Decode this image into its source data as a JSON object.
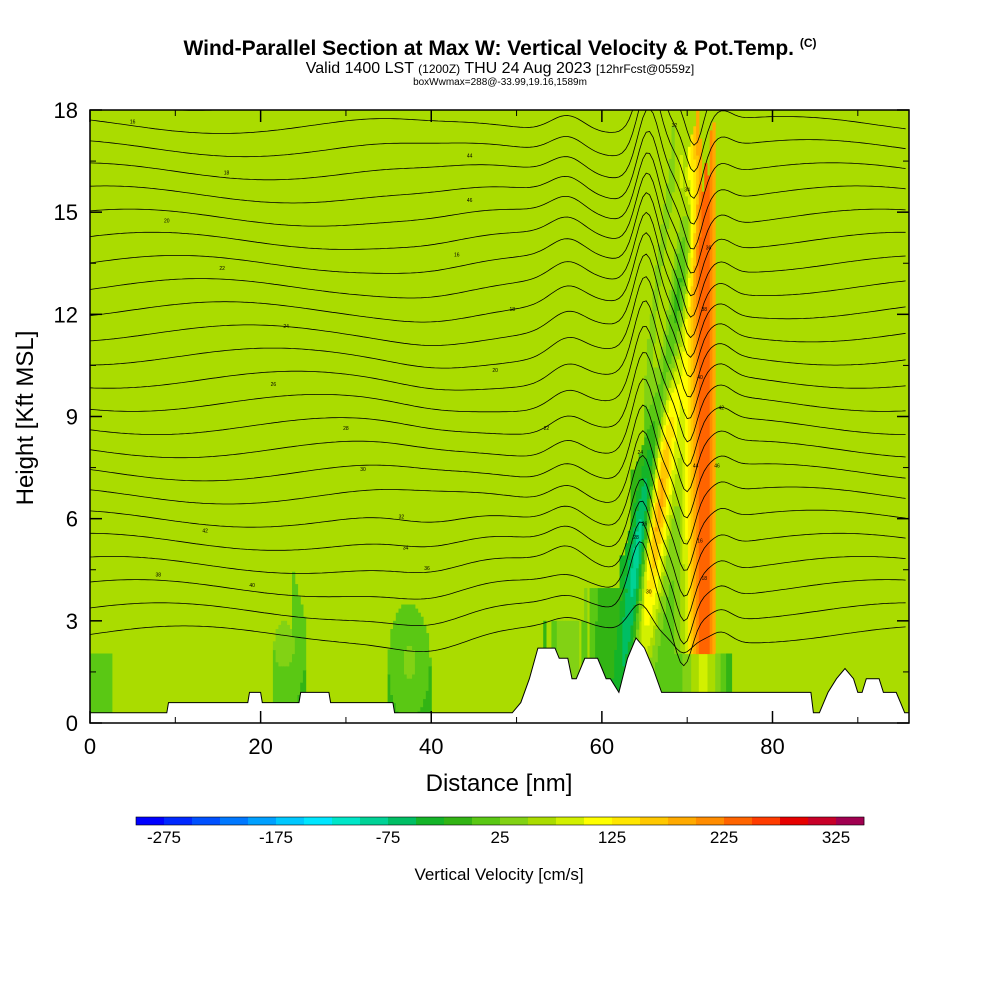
{
  "header": {
    "title_main": "Wind-Parallel Section at Max W: Vertical Velocity & Pot.Temp.",
    "title_mark": "(C)",
    "valid_prefix": "Valid 1400 LST",
    "valid_utc": "(1200Z)",
    "valid_date": "THU 24 Aug 2023",
    "forecast": "[12hrFcst@0559z]",
    "box_info": "boxWwmax=288@-33.99,19.16,1589m"
  },
  "chart_data": {
    "type": "heatmap",
    "xlabel": "Distance [nm]",
    "ylabel": "Height [Kft MSL]",
    "xlim": [
      0,
      96
    ],
    "ylim": [
      0,
      18
    ],
    "x_ticks": [
      0,
      20,
      40,
      60,
      80
    ],
    "y_ticks": [
      0,
      3,
      6,
      9,
      12,
      15,
      18
    ],
    "colorbar": {
      "title": "Vertical Velocity [cm/s]",
      "min": -300,
      "max": 350,
      "step": 25,
      "tick_values": [
        -275,
        -175,
        -75,
        25,
        125,
        225,
        325
      ],
      "tick_labels": [
        "-275",
        "-175",
        "-75",
        "25",
        "125",
        "225",
        "325"
      ],
      "colors": [
        "#0000ff",
        "#0028ff",
        "#0050ff",
        "#0078ff",
        "#00a0ff",
        "#00c8ff",
        "#00e6ff",
        "#00e6c8",
        "#00d296",
        "#00be64",
        "#14b428",
        "#32b414",
        "#5ac814",
        "#82d214",
        "#aadc00",
        "#d2f000",
        "#ffff00",
        "#ffe600",
        "#ffc800",
        "#ffaa00",
        "#ff8c00",
        "#ff6400",
        "#ff3c00",
        "#e60000",
        "#c80028",
        "#a00050"
      ]
    },
    "terrain_kft": [
      [
        0,
        0.3
      ],
      [
        9,
        0.3
      ],
      [
        9.2,
        0.6
      ],
      [
        18.5,
        0.6
      ],
      [
        18.7,
        0.9
      ],
      [
        20,
        0.9
      ],
      [
        20.2,
        0.6
      ],
      [
        24.5,
        0.6
      ],
      [
        24.7,
        0.9
      ],
      [
        28,
        0.9
      ],
      [
        28.2,
        0.6
      ],
      [
        35.5,
        0.6
      ],
      [
        35.7,
        0.3
      ],
      [
        49.5,
        0.3
      ],
      [
        50.5,
        0.6
      ],
      [
        51.5,
        1.3
      ],
      [
        52.5,
        2.2
      ],
      [
        54.5,
        2.2
      ],
      [
        55,
        1.9
      ],
      [
        56,
        1.9
      ],
      [
        56.5,
        1.3
      ],
      [
        57,
        1.3
      ],
      [
        58,
        1.9
      ],
      [
        59.5,
        1.9
      ],
      [
        60,
        1.6
      ],
      [
        60.5,
        1.3
      ],
      [
        61,
        1.3
      ],
      [
        62,
        0.9
      ],
      [
        63,
        1.9
      ],
      [
        64,
        2.5
      ],
      [
        65,
        2.2
      ],
      [
        66,
        1.6
      ],
      [
        67,
        0.9
      ],
      [
        84.5,
        0.9
      ],
      [
        84.8,
        0.3
      ],
      [
        85.5,
        0.3
      ],
      [
        86,
        0.6
      ],
      [
        86.5,
        0.9
      ],
      [
        87.5,
        1.3
      ],
      [
        88.5,
        1.6
      ],
      [
        89.5,
        1.3
      ],
      [
        90,
        0.9
      ],
      [
        90.5,
        0.9
      ],
      [
        91,
        1.3
      ],
      [
        92.5,
        1.3
      ],
      [
        93,
        0.9
      ],
      [
        94.5,
        0.9
      ],
      [
        95,
        0.6
      ],
      [
        95.5,
        0.3
      ],
      [
        96,
        0.3
      ]
    ]
  },
  "contour_labels": [
    "16",
    "18",
    "20",
    "22",
    "24",
    "26",
    "28",
    "30",
    "32",
    "34",
    "36",
    "38",
    "40",
    "42",
    "44",
    "46"
  ]
}
